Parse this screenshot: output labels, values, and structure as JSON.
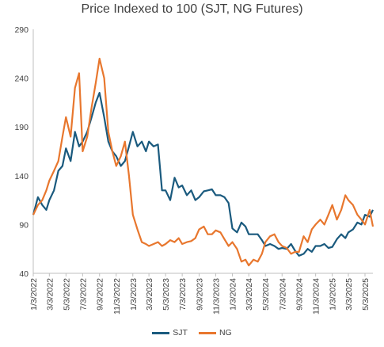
{
  "chart_data": {
    "type": "line",
    "title": "Price Indexed to 100 (SJT, NG Futures)",
    "xlabel": "",
    "ylabel": "",
    "ylim": [
      40,
      290
    ],
    "yticks": [
      40,
      90,
      140,
      190,
      240,
      290
    ],
    "xticks": [
      "1/3/2022",
      "3/3/2022",
      "5/3/2022",
      "7/3/2022",
      "9/3/2022",
      "11/3/2022",
      "1/3/2023",
      "3/3/2023",
      "5/3/2023",
      "7/3/2023",
      "9/3/2023",
      "11/3/2023",
      "1/3/2024",
      "3/3/2024",
      "5/3/2024",
      "7/3/2024",
      "9/3/2024",
      "11/3/2024",
      "1/3/2025",
      "3/3/2025",
      "5/3/2025"
    ],
    "legend_position": "bottom",
    "grid": false,
    "series": [
      {
        "name": "SJT",
        "color": "#1a5a7e",
        "x": [
          "1/3/2022",
          "1/20/2022",
          "2/5/2022",
          "2/20/2022",
          "3/3/2022",
          "3/20/2022",
          "4/5/2022",
          "4/20/2022",
          "5/3/2022",
          "5/20/2022",
          "6/5/2022",
          "6/20/2022",
          "7/3/2022",
          "7/20/2022",
          "8/5/2022",
          "8/20/2022",
          "9/3/2022",
          "9/20/2022",
          "10/5/2022",
          "10/20/2022",
          "11/3/2022",
          "11/20/2022",
          "12/5/2022",
          "12/20/2022",
          "1/3/2023",
          "1/20/2023",
          "2/5/2023",
          "2/20/2023",
          "3/3/2023",
          "3/20/2023",
          "4/5/2023",
          "4/20/2023",
          "5/3/2023",
          "5/20/2023",
          "6/5/2023",
          "6/20/2023",
          "7/3/2023",
          "7/20/2023",
          "8/5/2023",
          "8/20/2023",
          "9/3/2023",
          "9/20/2023",
          "10/5/2023",
          "10/20/2023",
          "11/3/2023",
          "11/20/2023",
          "12/5/2023",
          "12/20/2023",
          "1/3/2024",
          "1/20/2024",
          "2/5/2024",
          "2/20/2024",
          "3/3/2024",
          "3/20/2024",
          "4/5/2024",
          "4/20/2024",
          "5/3/2024",
          "5/20/2024",
          "6/5/2024",
          "6/20/2024",
          "7/3/2024",
          "7/20/2024",
          "8/5/2024",
          "8/20/2024",
          "9/3/2024",
          "9/20/2024",
          "10/5/2024",
          "10/20/2024",
          "11/3/2024",
          "11/20/2024",
          "12/5/2024",
          "12/20/2024",
          "1/3/2025",
          "1/20/2025",
          "2/5/2025",
          "2/20/2025",
          "3/3/2025",
          "3/20/2025",
          "4/5/2025",
          "4/20/2025",
          "5/3/2025",
          "5/20/2025",
          "6/1/2025"
        ],
        "values": [
          100,
          118,
          110,
          105,
          115,
          125,
          145,
          150,
          168,
          155,
          185,
          170,
          175,
          185,
          200,
          215,
          225,
          200,
          175,
          165,
          160,
          150,
          155,
          170,
          185,
          170,
          175,
          165,
          175,
          170,
          172,
          125,
          125,
          115,
          138,
          128,
          130,
          120,
          125,
          115,
          118,
          124,
          125,
          126,
          120,
          120,
          118,
          112,
          86,
          82,
          92,
          88,
          80,
          80,
          80,
          74,
          68,
          70,
          68,
          65,
          66,
          65,
          70,
          63,
          58,
          60,
          65,
          62,
          68,
          68,
          70,
          66,
          67,
          75,
          80,
          76,
          82,
          85,
          92,
          90,
          100,
          98,
          105
        ]
      },
      {
        "name": "NG",
        "color": "#e8772e",
        "x": [
          "1/3/2022",
          "1/20/2022",
          "2/5/2022",
          "2/20/2022",
          "3/3/2022",
          "3/20/2022",
          "4/5/2022",
          "4/20/2022",
          "5/3/2022",
          "5/20/2022",
          "6/5/2022",
          "6/20/2022",
          "7/3/2022",
          "7/20/2022",
          "8/5/2022",
          "8/20/2022",
          "9/3/2022",
          "9/20/2022",
          "10/5/2022",
          "10/20/2022",
          "11/3/2022",
          "11/20/2022",
          "12/5/2022",
          "12/20/2022",
          "1/3/2023",
          "1/20/2023",
          "2/5/2023",
          "2/20/2023",
          "3/3/2023",
          "3/20/2023",
          "4/5/2023",
          "4/20/2023",
          "5/3/2023",
          "5/20/2023",
          "6/5/2023",
          "6/20/2023",
          "7/3/2023",
          "7/20/2023",
          "8/5/2023",
          "8/20/2023",
          "9/3/2023",
          "9/20/2023",
          "10/5/2023",
          "10/20/2023",
          "11/3/2023",
          "11/20/2023",
          "12/5/2023",
          "12/20/2023",
          "1/3/2024",
          "1/20/2024",
          "2/5/2024",
          "2/20/2024",
          "3/3/2024",
          "3/20/2024",
          "4/5/2024",
          "4/20/2024",
          "5/3/2024",
          "5/20/2024",
          "6/5/2024",
          "6/20/2024",
          "7/3/2024",
          "7/20/2024",
          "8/5/2024",
          "8/20/2024",
          "9/3/2024",
          "9/20/2024",
          "10/5/2024",
          "10/20/2024",
          "11/3/2024",
          "11/20/2024",
          "12/5/2024",
          "12/20/2024",
          "1/3/2025",
          "1/20/2025",
          "2/5/2025",
          "2/20/2025",
          "3/3/2025",
          "3/20/2025",
          "4/5/2025",
          "4/20/2025",
          "5/3/2025",
          "5/20/2025",
          "6/1/2025"
        ],
        "values": [
          100,
          110,
          115,
          125,
          135,
          145,
          155,
          180,
          200,
          180,
          230,
          245,
          165,
          180,
          210,
          235,
          260,
          240,
          185,
          165,
          150,
          160,
          175,
          140,
          100,
          85,
          72,
          70,
          68,
          70,
          72,
          68,
          70,
          74,
          72,
          76,
          70,
          72,
          73,
          76,
          85,
          88,
          80,
          80,
          84,
          82,
          75,
          68,
          72,
          65,
          52,
          54,
          48,
          54,
          52,
          60,
          72,
          78,
          80,
          72,
          68,
          66,
          60,
          62,
          62,
          78,
          72,
          85,
          90,
          95,
          90,
          100,
          110,
          95,
          105,
          120,
          115,
          110,
          100,
          95,
          90,
          105,
          88
        ]
      }
    ]
  }
}
